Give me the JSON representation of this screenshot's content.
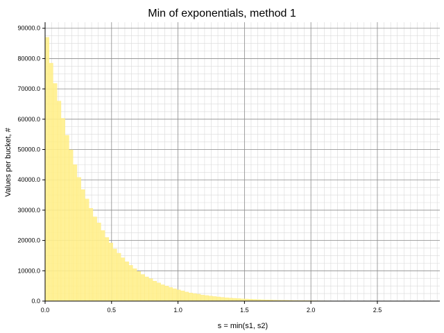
{
  "chart_data": {
    "type": "bar",
    "title": "Min of exponentials, method 1",
    "xlabel": "s = min(s1, s2)",
    "ylabel": "Values per bucket, #",
    "xlim": [
      0,
      2.97
    ],
    "ylim": [
      0,
      92000
    ],
    "bin_width": 0.03,
    "x_start": 0,
    "values": [
      87000,
      78500,
      71800,
      66000,
      60300,
      54700,
      49900,
      45000,
      40800,
      36800,
      33700,
      30600,
      27800,
      25800,
      23300,
      21000,
      19200,
      17200,
      15800,
      14300,
      13000,
      11800,
      10700,
      9800,
      8800,
      8000,
      7400,
      6600,
      6000,
      5400,
      5000,
      4500,
      4100,
      3700,
      3400,
      3000,
      2700,
      2500,
      2300,
      2000,
      1850,
      1700,
      1520,
      1380,
      1250,
      1120,
      1020,
      920,
      840,
      760,
      690,
      620,
      570,
      510,
      460,
      420,
      380,
      340,
      310,
      280,
      255,
      230,
      210,
      190,
      170,
      155,
      140,
      125,
      115,
      100,
      92,
      84,
      76,
      69,
      62,
      56,
      51,
      46,
      42,
      38,
      34,
      31,
      28,
      25,
      23,
      21,
      19,
      17,
      15,
      14,
      12,
      11,
      10,
      9,
      8,
      7,
      7,
      6,
      5
    ],
    "xticks": [
      "0.0",
      "0.5",
      "1.0",
      "1.5",
      "2.0",
      "2.5"
    ],
    "xtick_values": [
      0,
      0.5,
      1.0,
      1.5,
      2.0,
      2.5
    ],
    "yticks": [
      "0.0",
      "10000.0",
      "20000.0",
      "30000.0",
      "40000.0",
      "50000.0",
      "60000.0",
      "70000.0",
      "80000.0",
      "90000.0"
    ],
    "ytick_values": [
      0,
      10000,
      20000,
      30000,
      40000,
      50000,
      60000,
      70000,
      80000,
      90000
    ],
    "grid": true,
    "bar_color": "#fff08c",
    "bar_edge_color": "#ffe87a"
  }
}
